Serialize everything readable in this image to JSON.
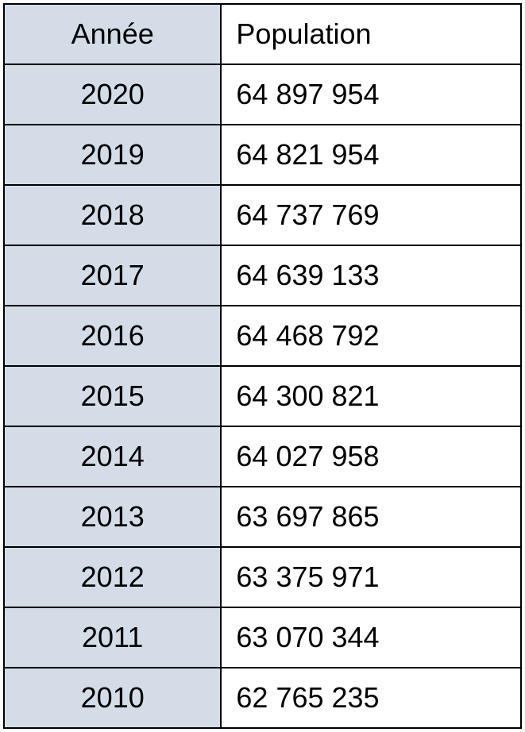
{
  "table": {
    "type": "table",
    "columns": [
      {
        "key": "year",
        "label": "Année",
        "bg_color": "#d4dce8",
        "align": "center",
        "width_pct": 42
      },
      {
        "key": "population",
        "label": "Population",
        "bg_color": "#ffffff",
        "align": "left",
        "width_pct": 58
      }
    ],
    "rows": [
      {
        "year": "2020",
        "population": "64 897 954"
      },
      {
        "year": "2019",
        "population": "64 821 954"
      },
      {
        "year": "2018",
        "population": "64 737 769"
      },
      {
        "year": "2017",
        "population": "64 639 133"
      },
      {
        "year": "2016",
        "population": "64 468 792"
      },
      {
        "year": "2015",
        "population": "64 300 821"
      },
      {
        "year": "2014",
        "population": "64 027 958"
      },
      {
        "year": "2013",
        "population": "63 697 865"
      },
      {
        "year": "2012",
        "population": "63 375 971"
      },
      {
        "year": "2011",
        "population": "63 070 344"
      },
      {
        "year": "2010",
        "population": "62 765 235"
      }
    ],
    "border_color": "#000000",
    "font_size": 36,
    "font_family": "Arial"
  }
}
